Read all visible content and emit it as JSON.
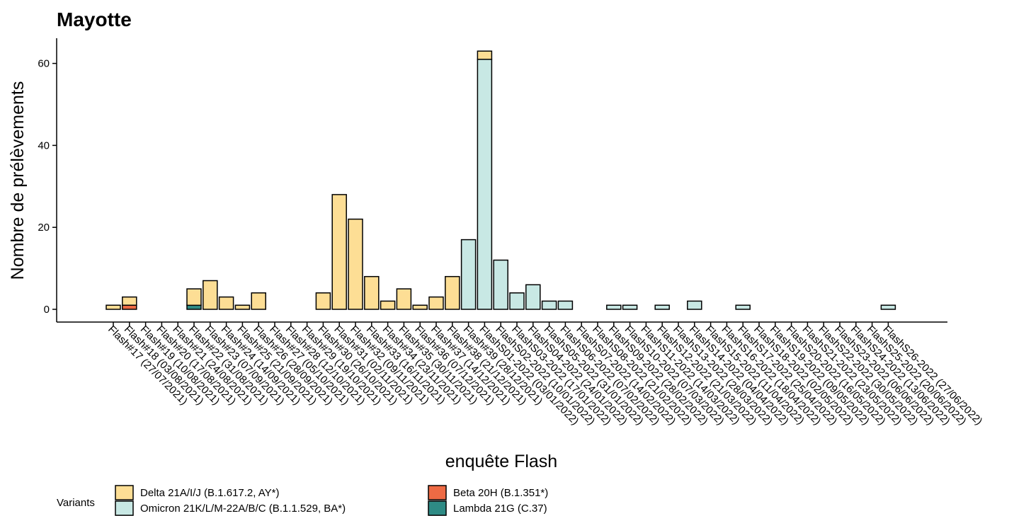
{
  "chart_data": {
    "type": "bar",
    "stacked": true,
    "title": "Mayotte",
    "xlabel": "enquête Flash",
    "ylabel": "Nombre de prélèvements",
    "ylim": [
      0,
      66
    ],
    "yticks": [
      0,
      20,
      40,
      60
    ],
    "grid": false,
    "legend": {
      "title": "Variants",
      "position": "bottom-left"
    },
    "categories": [
      "Flash#17 (27/07/2021)",
      "Flash#18 (03/08/2021)",
      "Flash#19 (10/08/2021)",
      "Flash#20 (17/08/2021)",
      "Flash#21 (24/08/2021)",
      "Flash#22 (31/08/2021)",
      "Flash#23 (07/09/2021)",
      "Flash#24 (14/09/2021)",
      "Flash#25 (21/09/2021)",
      "Flash#26 (28/09/2021)",
      "Flash#27 (05/10/2021)",
      "Flash#28 (12/10/2021)",
      "Flash#29 (19/10/2021)",
      "Flash#30 (26/10/2021)",
      "Flash#31 (02/11/2021)",
      "Flash#32 (09/11/2021)",
      "Flash#33 (16/11/2021)",
      "Flash#34 (23/11/2021)",
      "Flash#35 (30/11/2021)",
      "Flash#36 (07/12/2021)",
      "Flash#37 (14/12/2021)",
      "Flash#38 (21/12/2021)",
      "Flash#39 (28/12/2021)",
      "FlashS01-2022 (03/01/2022)",
      "FlashS02-2022 (10/01/2022)",
      "FlashS03-2022 (17/01/2022)",
      "FlashS04-2022 (24/01/2022)",
      "FlashS05-2022 (31/01/2022)",
      "FlashS06-2022 (07/02/2022)",
      "FlashS07-2022 (14/02/2022)",
      "FlashS08-2022 (21/02/2022)",
      "FlashS09-2022 (28/02/2022)",
      "FlashS10-2022 (07/03/2022)",
      "FlashS11-2022 (14/03/2022)",
      "FlashS12-2022 (21/03/2022)",
      "FlashS13-2022 (28/03/2022)",
      "FlashS14-2022 (04/04/2022)",
      "FlashS15-2022 (11/04/2022)",
      "FlashS16-2022 (18/04/2022)",
      "FlashS17-2022 (25/04/2022)",
      "FlashS18-2022 (02/05/2022)",
      "FlashS19-2022 (09/05/2022)",
      "FlashS20-2022 (16/05/2022)",
      "FlashS21-2022 (23/05/2022)",
      "FlashS22-2022 (30/05/2022)",
      "FlashS23-2022 (06/06/2022)",
      "FlashS24-2022 (13/06/2022)",
      "FlashS25-2022 (20/06/2022)",
      "FlashS26-2022 (27/06/2022)"
    ],
    "series": [
      {
        "name": "Lambda 21G (C.37)",
        "color": "#2E8B85",
        "values": [
          0,
          0,
          0,
          0,
          0,
          1,
          0,
          0,
          0,
          0,
          0,
          0,
          0,
          0,
          0,
          0,
          0,
          0,
          0,
          0,
          0,
          0,
          0,
          0,
          0,
          0,
          0,
          0,
          0,
          0,
          0,
          0,
          0,
          0,
          0,
          0,
          0,
          0,
          0,
          0,
          0,
          0,
          0,
          0,
          0,
          0,
          0,
          0,
          0
        ]
      },
      {
        "name": "Beta 20H (B.1.351*)",
        "color": "#EE6A44",
        "values": [
          0,
          1,
          0,
          0,
          0,
          0,
          0,
          0,
          0,
          0,
          0,
          0,
          0,
          0,
          0,
          0,
          0,
          0,
          0,
          0,
          0,
          0,
          0,
          0,
          0,
          0,
          0,
          0,
          0,
          0,
          0,
          0,
          0,
          0,
          0,
          0,
          0,
          0,
          0,
          0,
          0,
          0,
          0,
          0,
          0,
          0,
          0,
          0,
          0
        ]
      },
      {
        "name": "Omicron 21K/L/M-22A/B/C (B.1.1.529, BA*)",
        "color": "#C8E8E4",
        "values": [
          0,
          0,
          0,
          0,
          0,
          0,
          0,
          0,
          0,
          0,
          0,
          0,
          0,
          0,
          0,
          0,
          0,
          0,
          0,
          0,
          0,
          0,
          17,
          61,
          12,
          4,
          6,
          2,
          2,
          0,
          0,
          1,
          1,
          0,
          1,
          0,
          2,
          0,
          0,
          1,
          0,
          0,
          0,
          0,
          0,
          0,
          0,
          0,
          1
        ]
      },
      {
        "name": "Delta 21A/I/J (B.1.617.2, AY*)",
        "color": "#FDDE95",
        "values": [
          1,
          2,
          0,
          0,
          0,
          4,
          7,
          3,
          1,
          4,
          0,
          0,
          0,
          4,
          28,
          22,
          8,
          2,
          5,
          1,
          3,
          8,
          0,
          2,
          0,
          0,
          0,
          0,
          0,
          0,
          0,
          0,
          0,
          0,
          0,
          0,
          0,
          0,
          0,
          0,
          0,
          0,
          0,
          0,
          0,
          0,
          0,
          0,
          0
        ]
      }
    ],
    "legend_order": [
      "Delta 21A/I/J (B.1.617.2, AY*)",
      "Beta 20H (B.1.351*)",
      "Omicron 21K/L/M-22A/B/C (B.1.1.529, BA*)",
      "Lambda 21G (C.37)"
    ]
  }
}
